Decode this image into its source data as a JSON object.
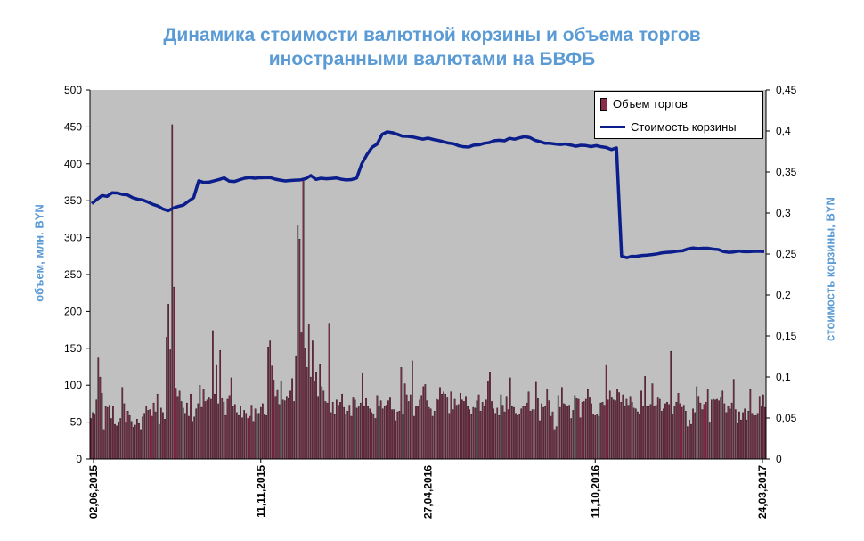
{
  "title_line1": "Динамика стоимости валютной корзины и объема торгов",
  "title_line2": "иностранными валютами на БВФБ",
  "chart_data": {
    "type": "bar",
    "title": "Динамика стоимости валютной корзины и объема торгов иностранными валютами на БВФБ",
    "ylabel_left": "объем, млн. BYN",
    "ylabel_right": "стоимость  корзины, BYN",
    "ylim_left": [
      0,
      500
    ],
    "ylim_right": [
      0,
      0.45
    ],
    "y_ticks_left": [
      "0",
      "50",
      "100",
      "150",
      "200",
      "250",
      "300",
      "350",
      "400",
      "450",
      "500"
    ],
    "y_ticks_right": [
      "0",
      "0,05",
      "0,1",
      "0,15",
      "0,2",
      "0,25",
      "0,3",
      "0,35",
      "0,4",
      "0,45"
    ],
    "x_tick_labels": [
      "02,06,2015",
      "11,11,2015",
      "27,04,2016",
      "11,10,2016",
      "24,03,2017"
    ],
    "grid": false,
    "plot_background": "#C0C0C0",
    "legend_placement": "top-right",
    "series": [
      {
        "name": "Объем торгов",
        "kind": "bar",
        "axis": "left",
        "color": "#8B2B4B",
        "values": [
          55,
          63,
          61,
          80,
          137,
          111,
          89,
          40,
          71,
          70,
          73,
          55,
          72,
          47,
          45,
          50,
          55,
          97,
          75,
          49,
          65,
          59,
          51,
          43,
          46,
          54,
          48,
          40,
          57,
          62,
          72,
          66,
          67,
          58,
          76,
          64,
          88,
          47,
          69,
          63,
          54,
          165,
          210,
          148,
          453,
          233,
          96,
          85,
          92,
          78,
          69,
          62,
          76,
          58,
          88,
          51,
          57,
          68,
          75,
          100,
          70,
          95,
          78,
          80,
          84,
          81,
          174,
          88,
          128,
          75,
          147,
          82,
          77,
          59,
          81,
          86,
          110,
          72,
          74,
          63,
          59,
          71,
          56,
          66,
          62,
          55,
          58,
          73,
          51,
          68,
          62,
          62,
          70,
          75,
          61,
          59,
          152,
          160,
          126,
          107,
          85,
          93,
          74,
          105,
          80,
          79,
          85,
          82,
          92,
          109,
          78,
          140,
          316,
          298,
          171,
          380,
          150,
          124,
          183,
          111,
          160,
          106,
          118,
          85,
          129,
          98,
          92,
          78,
          76,
          184,
          63,
          77,
          60,
          80,
          73,
          77,
          88,
          70,
          61,
          65,
          73,
          58,
          84,
          80,
          69,
          72,
          76,
          117,
          71,
          82,
          71,
          68,
          63,
          60,
          55,
          86,
          72,
          79,
          68,
          71,
          73,
          79,
          84,
          67,
          67,
          52,
          64,
          65,
          124,
          61,
          102,
          87,
          78,
          87,
          133,
          58,
          72,
          71,
          80,
          86,
          98,
          101,
          79,
          70,
          68,
          58,
          65,
          81,
          80,
          97,
          88,
          91,
          88,
          84,
          62,
          91,
          67,
          81,
          73,
          74,
          89,
          80,
          78,
          85,
          71,
          67,
          60,
          70,
          69,
          79,
          87,
          65,
          77,
          71,
          80,
          106,
          118,
          78,
          68,
          62,
          69,
          59,
          87,
          73,
          64,
          85,
          67,
          110,
          71,
          70,
          62,
          59,
          61,
          68,
          72,
          71,
          76,
          91,
          65,
          67,
          67,
          104,
          82,
          52,
          75,
          70,
          71,
          95,
          79,
          58,
          64,
          40,
          44,
          86,
          70,
          97,
          75,
          74,
          71,
          73,
          55,
          66,
          86,
          82,
          81,
          56,
          77,
          78,
          81,
          94,
          84,
          75,
          61,
          59,
          60,
          58,
          76,
          77,
          73,
          128,
          80,
          92,
          84,
          80,
          79,
          95,
          90,
          77,
          87,
          71,
          81,
          73,
          85,
          77,
          69,
          68,
          64,
          61,
          92,
          71,
          112,
          71,
          71,
          74,
          102,
          71,
          73,
          84,
          81,
          65,
          68,
          75,
          77,
          74,
          146,
          61,
          72,
          77,
          89,
          75,
          70,
          73,
          65,
          44,
          53,
          47,
          68,
          63,
          98,
          85,
          76,
          67,
          74,
          77,
          95,
          49,
          80,
          81,
          80,
          81,
          79,
          84,
          92,
          75,
          63,
          71,
          68,
          76,
          108,
          67,
          48,
          64,
          53,
          63,
          68,
          53,
          65,
          94,
          62,
          59,
          59,
          62,
          85,
          72,
          87,
          70
        ]
      },
      {
        "name": "Стоимость  корзины",
        "kind": "line",
        "axis": "right",
        "color": "#0B1E8C",
        "values": [
          0.3115,
          0.3166,
          0.3213,
          0.3203,
          0.3247,
          0.3245,
          0.3227,
          0.3221,
          0.3188,
          0.3169,
          0.3159,
          0.3134,
          0.3105,
          0.3085,
          0.3048,
          0.3028,
          0.3061,
          0.3081,
          0.3097,
          0.3144,
          0.3187,
          0.3392,
          0.3373,
          0.3376,
          0.3392,
          0.3408,
          0.3428,
          0.3388,
          0.3384,
          0.3405,
          0.3424,
          0.3432,
          0.3424,
          0.343,
          0.3431,
          0.3432,
          0.3413,
          0.3401,
          0.3391,
          0.3397,
          0.3401,
          0.3404,
          0.3419,
          0.3457,
          0.341,
          0.3424,
          0.3417,
          0.3421,
          0.3427,
          0.3412,
          0.3404,
          0.3408,
          0.3426,
          0.36,
          0.371,
          0.38,
          0.384,
          0.396,
          0.399,
          0.398,
          0.396,
          0.3937,
          0.3935,
          0.3927,
          0.3913,
          0.3901,
          0.3913,
          0.3897,
          0.3885,
          0.387,
          0.3853,
          0.3845,
          0.382,
          0.3808,
          0.3805,
          0.3828,
          0.3831,
          0.385,
          0.3858,
          0.3882,
          0.3887,
          0.388,
          0.3911,
          0.39,
          0.3918,
          0.3931,
          0.392,
          0.3887,
          0.387,
          0.385,
          0.385,
          0.3841,
          0.3835,
          0.3842,
          0.3829,
          0.3814,
          0.3826,
          0.3823,
          0.381,
          0.3822,
          0.3808,
          0.3799,
          0.3774,
          0.3794,
          0.2475,
          0.2455,
          0.2472,
          0.2473,
          0.2482,
          0.2486,
          0.2493,
          0.2502,
          0.2515,
          0.252,
          0.2525,
          0.2535,
          0.254,
          0.2562,
          0.2574,
          0.2567,
          0.257,
          0.257,
          0.256,
          0.2555,
          0.253,
          0.2521,
          0.2525,
          0.2537,
          0.2528,
          0.2529,
          0.2533,
          0.2534,
          0.253
        ]
      }
    ]
  }
}
